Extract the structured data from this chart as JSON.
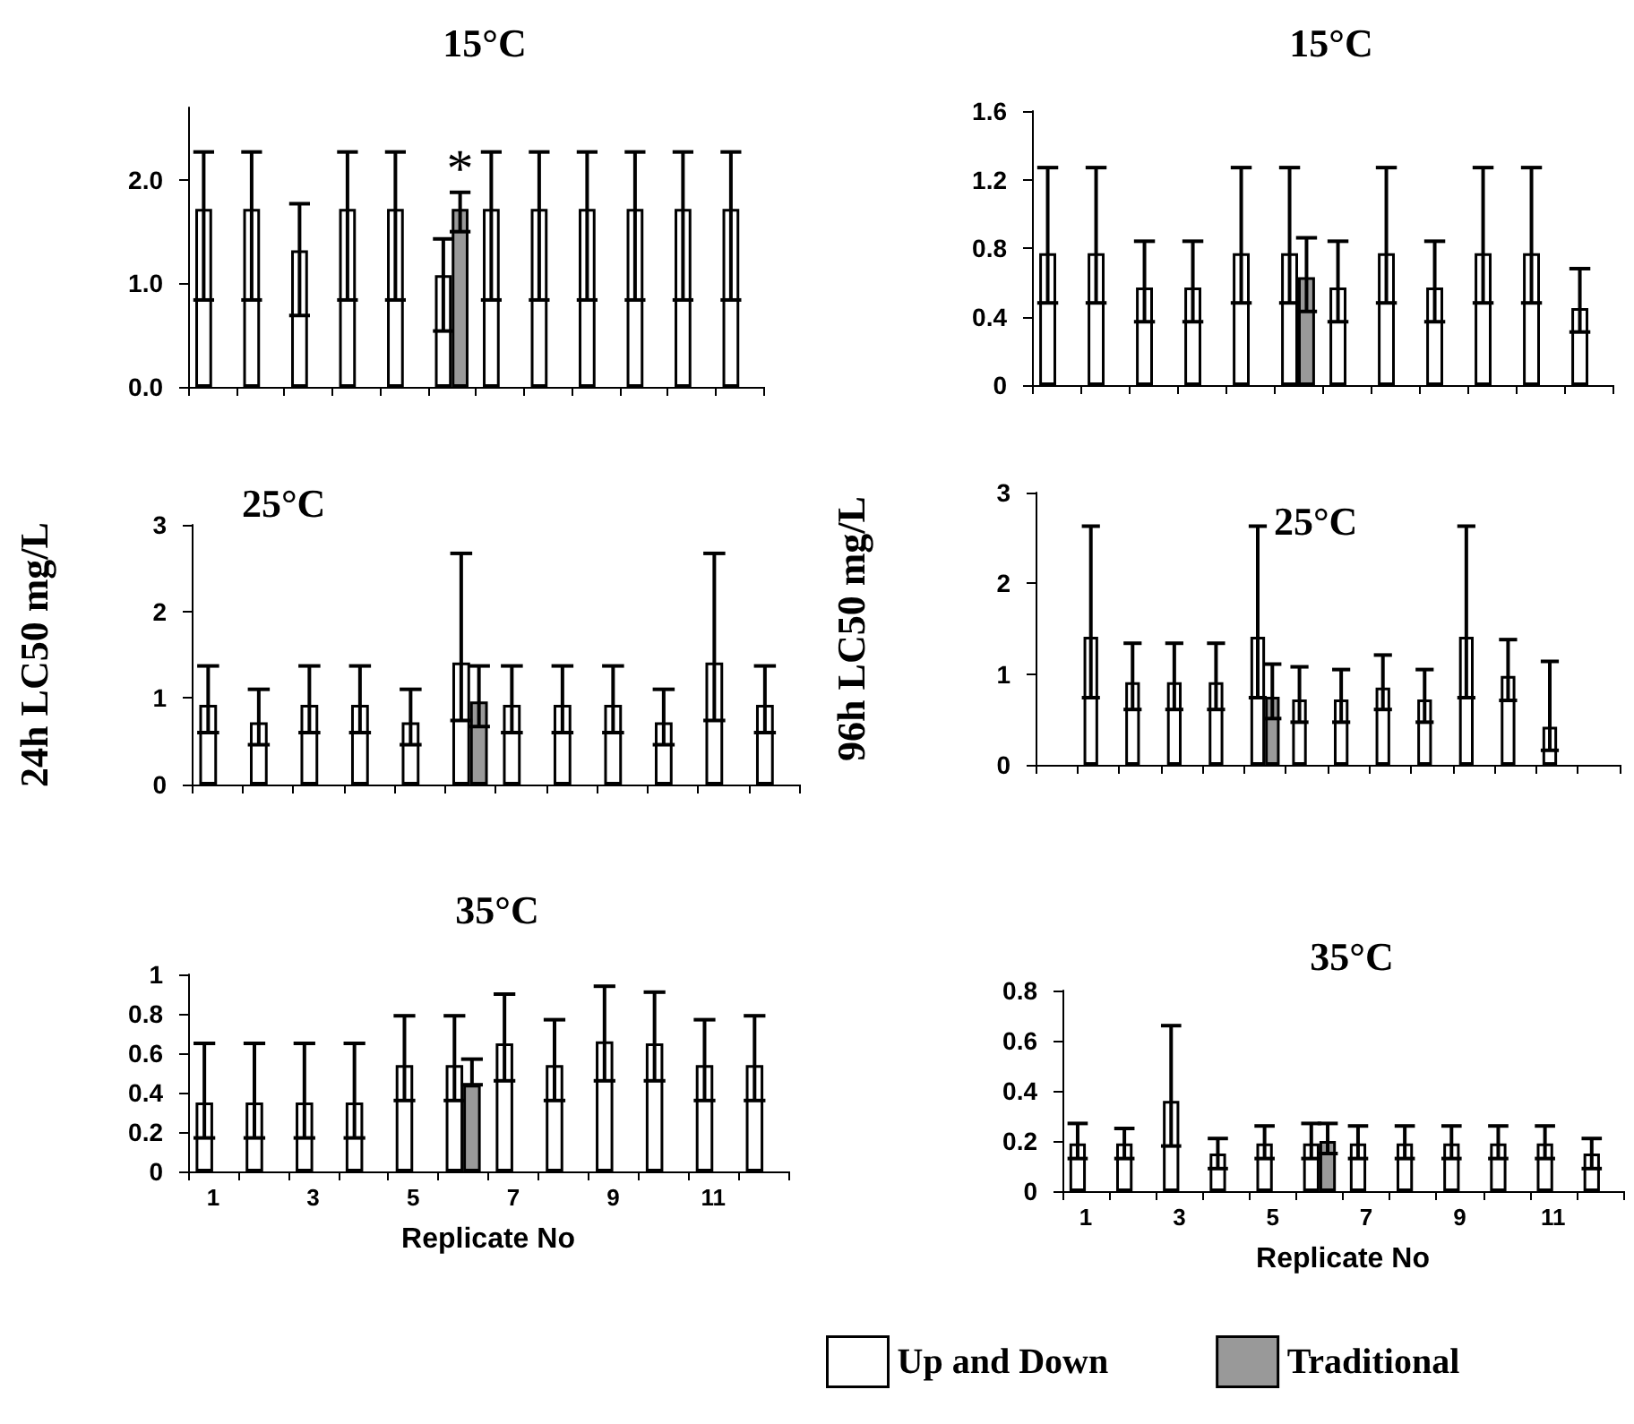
{
  "chart_data": [
    {
      "type": "bar",
      "title": "15°C",
      "categories": [
        null,
        null,
        null,
        null,
        null,
        null,
        null,
        null,
        null,
        null,
        null,
        null
      ],
      "ylim": [
        0,
        2.7
      ],
      "yticks": [
        {
          "value": 0,
          "label": "0.0"
        },
        {
          "value": 1,
          "label": "1.0"
        },
        {
          "value": 2,
          "label": "2.0"
        }
      ],
      "tick_labels": "y",
      "annotations": [
        {
          "text": "*",
          "y": 1.88
        }
      ],
      "series": [
        {
          "color": "#ffffff",
          "values": [
            1.72,
            1.72,
            1.32,
            1.72,
            1.72,
            1.08,
            1.72,
            1.72,
            1.72,
            1.72,
            1.72,
            1.72
          ],
          "errors": [
            [
              0.84,
              2.27
            ],
            [
              0.84,
              2.27
            ],
            [
              0.69,
              1.77
            ],
            [
              0.84,
              2.27
            ],
            [
              0.84,
              2.27
            ],
            [
              0.54,
              1.43
            ],
            [
              0.84,
              2.27
            ],
            [
              0.84,
              2.27
            ],
            [
              0.84,
              2.27
            ],
            [
              0.84,
              2.27
            ],
            [
              0.84,
              2.27
            ],
            [
              0.84,
              2.27
            ]
          ]
        },
        {
          "color": "#999999",
          "values": [
            null,
            null,
            null,
            null,
            null,
            1.72,
            null,
            null,
            null,
            null,
            null,
            null
          ],
          "errors": [
            null,
            null,
            null,
            null,
            null,
            [
              1.5,
              1.88
            ],
            null,
            null,
            null,
            null,
            null,
            null
          ]
        }
      ]
    },
    {
      "type": "bar",
      "title": "15°C",
      "categories": [
        null,
        null,
        null,
        null,
        null,
        null,
        null,
        null,
        null,
        null,
        null,
        null
      ],
      "ylim": [
        0,
        1.6
      ],
      "yticks": [
        0,
        0.4,
        0.8,
        1.2,
        1.6
      ],
      "tick_labels": "y",
      "series": [
        {
          "color": "#ffffff",
          "values": [
            0.77,
            0.77,
            0.57,
            0.57,
            0.77,
            0.77,
            0.57,
            0.77,
            0.57,
            0.77,
            0.77,
            0.45
          ],
          "errors": [
            [
              0.48,
              1.27
            ],
            [
              0.48,
              1.27
            ],
            [
              0.37,
              0.84
            ],
            [
              0.37,
              0.84
            ],
            [
              0.48,
              1.27
            ],
            [
              0.48,
              1.27
            ],
            [
              0.37,
              0.84
            ],
            [
              0.48,
              1.27
            ],
            [
              0.37,
              0.84
            ],
            [
              0.48,
              1.27
            ],
            [
              0.48,
              1.27
            ],
            [
              0.31,
              0.68
            ]
          ]
        },
        {
          "color": "#999999",
          "values": [
            null,
            null,
            null,
            null,
            null,
            0.63,
            null,
            null,
            null,
            null,
            null,
            null
          ],
          "errors": [
            null,
            null,
            null,
            null,
            null,
            [
              0.43,
              0.86
            ],
            null,
            null,
            null,
            null,
            null,
            null
          ]
        }
      ]
    },
    {
      "type": "bar",
      "title": "25°C",
      "ylabel": "24h LC50 mg/L",
      "categories": [
        null,
        null,
        null,
        null,
        null,
        null,
        null,
        null,
        null,
        null,
        null,
        null
      ],
      "ylim": [
        0,
        3
      ],
      "yticks": [
        0,
        1,
        2,
        3
      ],
      "tick_labels": "y",
      "series": [
        {
          "color": "#ffffff",
          "values": [
            0.92,
            0.72,
            0.92,
            0.92,
            0.72,
            1.41,
            0.92,
            0.92,
            0.92,
            0.72,
            1.41,
            0.92
          ],
          "errors": [
            [
              0.6,
              1.37
            ],
            [
              0.46,
              1.1
            ],
            [
              0.6,
              1.37
            ],
            [
              0.6,
              1.37
            ],
            [
              0.46,
              1.1
            ],
            [
              0.74,
              2.67
            ],
            [
              0.6,
              1.37
            ],
            [
              0.6,
              1.37
            ],
            [
              0.6,
              1.37
            ],
            [
              0.46,
              1.1
            ],
            [
              0.74,
              2.67
            ],
            [
              0.6,
              1.37
            ]
          ]
        },
        {
          "color": "#999999",
          "values": [
            null,
            null,
            null,
            null,
            null,
            0.96,
            null,
            null,
            null,
            null,
            null,
            null
          ],
          "errors": [
            null,
            null,
            null,
            null,
            null,
            [
              0.67,
              1.37
            ],
            null,
            null,
            null,
            null,
            null,
            null
          ]
        }
      ]
    },
    {
      "type": "bar",
      "title": "25°C",
      "ylabel": "96h LC50 mg/L",
      "categories": [
        null,
        null,
        null,
        null,
        null,
        null,
        null,
        null,
        null,
        null,
        null,
        null,
        null,
        null
      ],
      "ylim": [
        0,
        3
      ],
      "yticks": [
        0,
        1,
        2,
        3
      ],
      "tick_labels": "y",
      "series": [
        {
          "color": "#ffffff",
          "values": [
            null,
            1.41,
            0.91,
            0.91,
            0.91,
            1.41,
            0.72,
            0.72,
            0.85,
            0.72,
            1.41,
            0.98,
            0.42,
            null
          ],
          "errors": [
            null,
            [
              0.74,
              2.63
            ],
            [
              0.61,
              1.34
            ],
            [
              0.61,
              1.34
            ],
            [
              0.61,
              1.34
            ],
            [
              0.74,
              2.63
            ],
            [
              0.47,
              1.08
            ],
            [
              0.47,
              1.05
            ],
            [
              0.61,
              1.21
            ],
            [
              0.47,
              1.05
            ],
            [
              0.74,
              2.63
            ],
            [
              0.71,
              1.38
            ],
            [
              0.16,
              1.14
            ],
            null
          ]
        },
        {
          "color": "#999999",
          "values": [
            null,
            null,
            null,
            null,
            null,
            0.75,
            null,
            null,
            null,
            null,
            null,
            null,
            null,
            null
          ],
          "errors": [
            null,
            null,
            null,
            null,
            null,
            [
              0.51,
              1.11
            ],
            null,
            null,
            null,
            null,
            null,
            null,
            null,
            null
          ]
        }
      ]
    },
    {
      "type": "bar",
      "title": "35°C",
      "xlabel": "Replicate No",
      "categories": [
        "1",
        null,
        "3",
        null,
        "5",
        null,
        "7",
        null,
        "9",
        null,
        "11",
        null
      ],
      "ylim": [
        0,
        1
      ],
      "yticks": [
        0,
        0.2,
        0.4,
        0.6,
        0.8,
        1
      ],
      "series": [
        {
          "color": "#ffffff",
          "values": [
            0.35,
            0.35,
            0.35,
            0.35,
            0.54,
            0.54,
            0.65,
            0.54,
            0.66,
            0.65,
            0.54,
            0.54
          ],
          "errors": [
            [
              0.17,
              0.65
            ],
            [
              0.17,
              0.65
            ],
            [
              0.17,
              0.65
            ],
            [
              0.17,
              0.65
            ],
            [
              0.36,
              0.79
            ],
            [
              0.36,
              0.79
            ],
            [
              0.46,
              0.9
            ],
            [
              0.36,
              0.77
            ],
            [
              0.46,
              0.94
            ],
            [
              0.46,
              0.91
            ],
            [
              0.36,
              0.77
            ],
            [
              0.36,
              0.79
            ]
          ]
        },
        {
          "color": "#999999",
          "values": [
            null,
            null,
            null,
            null,
            null,
            0.44,
            null,
            null,
            null,
            null,
            null,
            null
          ],
          "errors": [
            null,
            null,
            null,
            null,
            null,
            [
              0.44,
              0.57
            ],
            null,
            null,
            null,
            null,
            null,
            null
          ]
        }
      ]
    },
    {
      "type": "bar",
      "title": "35°C",
      "xlabel": "Replicate No",
      "categories": [
        "1",
        null,
        "3",
        null,
        "5",
        null,
        "7",
        null,
        "9",
        null,
        "11",
        null
      ],
      "ylim": [
        0,
        0.8
      ],
      "yticks": [
        0,
        0.2,
        0.4,
        0.6,
        0.8
      ],
      "legend": "bottom",
      "series": [
        {
          "name": "Up and Down",
          "color": "#ffffff",
          "values": [
            0.19,
            0.19,
            0.36,
            0.15,
            0.19,
            0.19,
            0.19,
            0.19,
            0.19,
            0.19,
            0.19,
            0.15
          ],
          "errors": [
            [
              0.13,
              0.27
            ],
            [
              0.13,
              0.25
            ],
            [
              0.18,
              0.66
            ],
            [
              0.09,
              0.21
            ],
            [
              0.13,
              0.26
            ],
            [
              0.13,
              0.27
            ],
            [
              0.13,
              0.26
            ],
            [
              0.13,
              0.26
            ],
            [
              0.13,
              0.26
            ],
            [
              0.13,
              0.26
            ],
            [
              0.13,
              0.26
            ],
            [
              0.09,
              0.21
            ]
          ]
        },
        {
          "name": "Traditional",
          "color": "#999999",
          "values": [
            null,
            null,
            null,
            null,
            null,
            0.2,
            null,
            null,
            null,
            null,
            null,
            null
          ],
          "errors": [
            null,
            null,
            null,
            null,
            null,
            [
              0.15,
              0.27
            ],
            null,
            null,
            null,
            null,
            null,
            null
          ]
        }
      ]
    }
  ]
}
